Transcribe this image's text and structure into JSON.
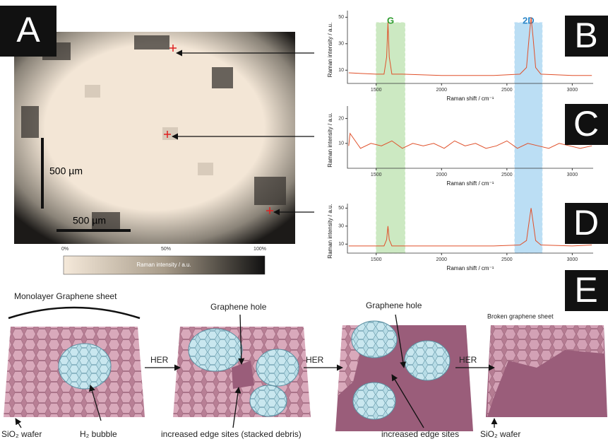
{
  "panels": {
    "a": "A",
    "b": "B",
    "c": "C",
    "d": "D",
    "e": "E"
  },
  "map": {
    "scale_bar_vertical": "500 µm",
    "scale_bar_horizontal": "500 µm",
    "colorbar": {
      "labels": [
        "0%",
        "50%",
        "100%"
      ],
      "title": "Raman intensity / a.u."
    }
  },
  "chart_data": [
    {
      "type": "line",
      "ylabel": "Raman intensity / a.u.",
      "xlabel": "Raman shift / cm⁻¹",
      "xlim": [
        1280,
        3160
      ],
      "xticks": [
        1500,
        2000,
        2500,
        3000
      ],
      "ylim": [
        0,
        55
      ],
      "yticks": [
        10,
        30,
        50
      ],
      "bands": [
        {
          "label": "G",
          "range": [
            1500,
            1720
          ],
          "color": "#8fd07a"
        },
        {
          "label": "2D",
          "range": [
            2560,
            2770
          ],
          "color": "#6ab8e8"
        }
      ],
      "series": [
        {
          "color": "#e0502a",
          "x": [
            1290,
            1500,
            1560,
            1580,
            1590,
            1600,
            1620,
            1700,
            2000,
            2400,
            2600,
            2650,
            2670,
            2685,
            2700,
            2720,
            2760,
            3000,
            3150
          ],
          "values": [
            8,
            7,
            7,
            20,
            46,
            20,
            7,
            7,
            6,
            6,
            7,
            12,
            35,
            50,
            35,
            12,
            7,
            6,
            6
          ]
        }
      ]
    },
    {
      "type": "line",
      "ylabel": "Raman intensity / a.u.",
      "xlabel": "Raman shift / cm⁻¹",
      "xlim": [
        1280,
        3160
      ],
      "xticks": [
        1500,
        2000,
        2500,
        3000
      ],
      "ylim": [
        0,
        25
      ],
      "yticks": [
        10,
        20
      ],
      "series": [
        {
          "color": "#e0502a",
          "x": [
            1290,
            1300,
            1380,
            1460,
            1540,
            1620,
            1700,
            1780,
            1860,
            1940,
            2020,
            2100,
            2180,
            2260,
            2340,
            2420,
            2500,
            2580,
            2660,
            2740,
            2820,
            2900,
            2980,
            3060,
            3150
          ],
          "values": [
            9,
            14,
            8,
            10,
            9,
            11,
            8,
            10,
            9,
            10,
            8,
            11,
            9,
            10,
            8,
            9,
            11,
            8,
            10,
            9,
            8,
            10,
            9,
            8,
            9
          ]
        }
      ]
    },
    {
      "type": "line",
      "ylabel": "Raman intensity / a.u.",
      "xlabel": "Raman shift / cm⁻¹",
      "xlim": [
        1280,
        3160
      ],
      "xticks": [
        1500,
        2000,
        2500,
        3000
      ],
      "ylim": [
        0,
        55
      ],
      "yticks": [
        10,
        30,
        50
      ],
      "series": [
        {
          "color": "#e0502a",
          "x": [
            1290,
            1500,
            1560,
            1580,
            1590,
            1600,
            1620,
            1700,
            2000,
            2400,
            2600,
            2650,
            2670,
            2685,
            2700,
            2720,
            2760,
            3000,
            3150
          ],
          "values": [
            8,
            8,
            8,
            15,
            30,
            15,
            8,
            8,
            8,
            8,
            9,
            14,
            35,
            50,
            35,
            14,
            9,
            8,
            9
          ]
        }
      ]
    }
  ],
  "schematic": {
    "sheet_label": "Monolayer Graphene sheet",
    "hole_1": "Graphene hole",
    "hole_2": "Graphene hole",
    "broken": "Broken graphene sheet",
    "her": [
      "HER",
      "HER",
      "HER"
    ],
    "wafer_1": "SiO₂ wafer",
    "bubble": "H₂ bubble",
    "edge_debris": "increased edge sites (stacked debris)",
    "edge": "increased edge sites",
    "wafer_2": "SiO₂ wafer"
  }
}
